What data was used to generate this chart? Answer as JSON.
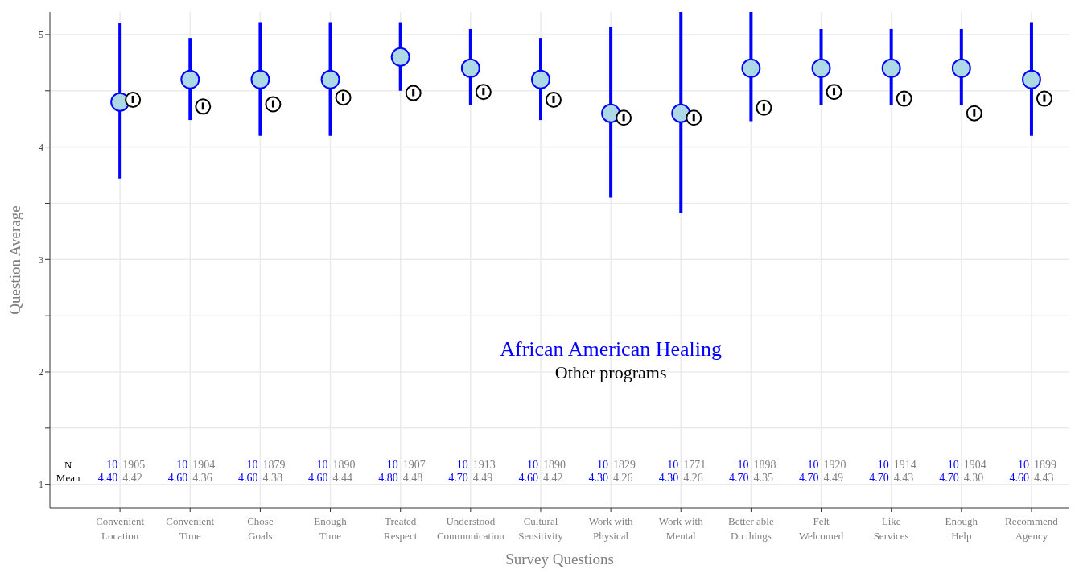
{
  "chart_data": {
    "type": "scatter",
    "xlabel": "Survey Questions",
    "ylabel": "Question Average",
    "categories": [
      "Convenient Location",
      "Convenient Time",
      "Chose Goals",
      "Enough Time",
      "Treated Respect",
      "Understood Communication",
      "Cultural Sensitivity",
      "Work with Physical",
      "Work with Mental",
      "Better able Do things",
      "Felt Welcomed",
      "Like Services",
      "Enough Help",
      "Recommend Agency"
    ],
    "ylim": [
      0.79,
      5.2
    ],
    "yticks": [
      1,
      {
        "value": 1.5,
        "label": null
      },
      2,
      {
        "value": 2.5,
        "label": null
      },
      3,
      {
        "value": 3.5,
        "label": null
      },
      4,
      {
        "value": 4.5,
        "label": null
      },
      5
    ],
    "grid": true,
    "series": [
      {
        "name": "African American Healing",
        "color": "#0000ff",
        "values": [
          4.4,
          4.6,
          4.6,
          4.6,
          4.8,
          4.7,
          4.6,
          4.3,
          4.3,
          4.7,
          4.7,
          4.7,
          4.7,
          4.6
        ],
        "errors": [
          [
            3.72,
            5.1
          ],
          [
            4.24,
            4.97
          ],
          [
            4.1,
            5.11
          ],
          [
            4.1,
            5.11
          ],
          [
            4.5,
            5.11
          ],
          [
            4.37,
            5.05
          ],
          [
            4.24,
            4.97
          ],
          [
            3.55,
            5.07
          ],
          [
            3.41,
            5.2
          ],
          [
            4.23,
            5.2
          ],
          [
            4.37,
            5.05
          ],
          [
            4.37,
            5.05
          ],
          [
            4.37,
            5.05
          ],
          [
            4.1,
            5.11
          ]
        ]
      },
      {
        "name": "Other programs",
        "color": "#000000",
        "values": [
          4.42,
          4.36,
          4.38,
          4.44,
          4.48,
          4.49,
          4.42,
          4.26,
          4.26,
          4.35,
          4.49,
          4.43,
          4.3,
          4.43
        ]
      }
    ],
    "annotations": [
      "N",
      "Mean",
      "10",
      "1905",
      "4.40",
      "4.42",
      "10",
      "1904",
      "4.60",
      "4.36",
      "10",
      "1879",
      "4.60",
      "4.38",
      "10",
      "1890",
      "4.60",
      "4.44",
      "10",
      "1907",
      "4.80",
      "4.48",
      "10",
      "1913",
      "4.70",
      "4.49",
      "10",
      "1890",
      "4.60",
      "4.42",
      "10",
      "1829",
      "4.30",
      "4.26",
      "10",
      "1771",
      "4.30",
      "4.26",
      "10",
      "1898",
      "4.70",
      "4.35",
      "10",
      "1920",
      "4.70",
      "4.49",
      "10",
      "1914",
      "4.70",
      "4.43",
      "10",
      "1904",
      "4.70",
      "4.30",
      "10",
      "1899",
      "4.60",
      "4.43"
    ]
  }
}
